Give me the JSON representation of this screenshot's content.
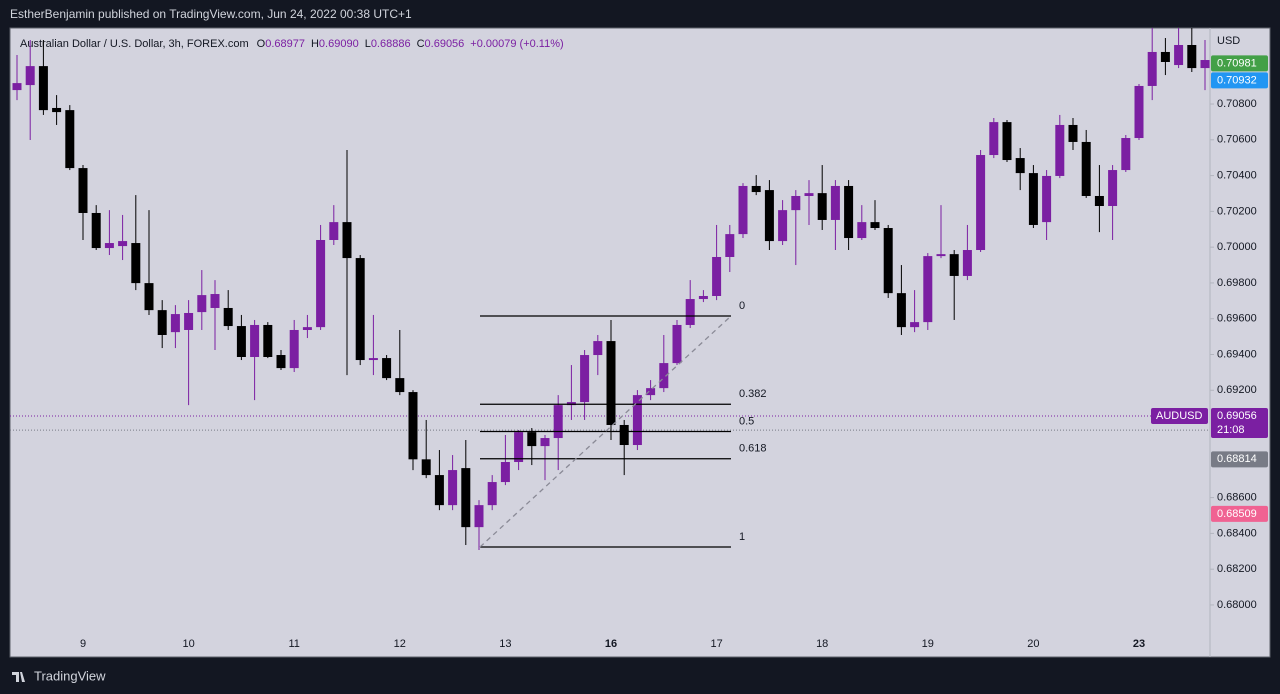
{
  "header": {
    "publisher": "EstherBenjamin published on TradingView.com, Jun 24, 2022 00:38 UTC+1",
    "brand": "TradingView"
  },
  "chart_data": {
    "type": "candlestick",
    "symbol": "Australian Dollar / U.S. Dollar, 3h, FOREX.com",
    "ohlc": [
      {
        "name": "O",
        "value": 0.68977,
        "label": "0.68977"
      },
      {
        "name": "H",
        "value": 0.6909,
        "label": "0.69090"
      },
      {
        "name": "L",
        "value": 0.68886,
        "label": "0.68886"
      },
      {
        "name": "C",
        "value": 0.69056,
        "label": "0.69056"
      }
    ],
    "change": "+0.00079 (+0.11%)",
    "currency": "USD",
    "categories": [
      null,
      null,
      null,
      null,
      null,
      "9",
      null,
      null,
      null,
      null,
      null,
      null,
      null,
      "10",
      null,
      null,
      null,
      null,
      null,
      null,
      null,
      "11",
      null,
      null,
      null,
      null,
      null,
      null,
      null,
      "12",
      null,
      null,
      null,
      null,
      null,
      null,
      null,
      "13",
      null,
      null,
      null,
      null,
      null,
      null,
      null,
      "16",
      null,
      null,
      null,
      null,
      null,
      null,
      null,
      "17",
      null,
      null,
      null,
      null,
      null,
      null,
      null,
      "18",
      null,
      null,
      null,
      null,
      null,
      null,
      null,
      "19",
      null,
      null,
      null,
      null,
      null,
      null,
      null,
      "20",
      null,
      null,
      null,
      null,
      null,
      null,
      null,
      "23",
      null,
      null,
      null,
      null,
      null
    ],
    "open": [
      0.70878,
      0.70906,
      0.71012,
      0.70778,
      0.70766,
      0.70442,
      0.70191,
      0.69995,
      0.70006,
      0.70023,
      0.69799,
      0.69648,
      0.69525,
      0.69537,
      0.69637,
      0.6966,
      0.6966,
      0.69559,
      0.69386,
      0.69565,
      0.69397,
      0.69324,
      0.69537,
      0.69553,
      0.7004,
      0.7014,
      0.69939,
      0.69369,
      0.6938,
      0.69268,
      0.6919,
      0.68814,
      0.68726,
      0.68558,
      0.68765,
      0.68435,
      0.68558,
      0.68687,
      0.68799,
      0.68966,
      0.68888,
      0.68933,
      0.69117,
      0.69134,
      0.69397,
      0.69475,
      0.69006,
      0.68894,
      0.69173,
      0.69212,
      0.69352,
      0.69565,
      0.6971,
      0.69727,
      0.69945,
      0.70073,
      0.70342,
      0.70319,
      0.70034,
      0.70207,
      0.70286,
      0.70302,
      0.70152,
      0.70342,
      0.70051,
      0.7014,
      0.70107,
      0.69743,
      0.69553,
      0.69581,
      0.6995,
      0.69961,
      0.69839,
      0.69984,
      0.70515,
      0.70699,
      0.70498,
      0.70414,
      0.7014,
      0.70398,
      0.70683,
      0.70588,
      0.70286,
      0.7023,
      0.70431,
      0.7061,
      0.70901,
      0.71091,
      0.71018,
      0.7113,
      0.71001
    ],
    "high": [
      0.71074,
      0.71158,
      0.71158,
      0.7085,
      0.70794,
      0.70459,
      0.70235,
      0.70207,
      0.7018,
      0.70291,
      0.70207,
      0.69704,
      0.69676,
      0.69704,
      0.69872,
      0.69816,
      0.6976,
      0.69621,
      0.69593,
      0.69581,
      0.69425,
      0.69593,
      0.69621,
      0.70124,
      0.70235,
      0.70543,
      0.69956,
      0.69621,
      0.69397,
      0.69537,
      0.69201,
      0.69034,
      0.68866,
      0.68838,
      0.68922,
      0.68586,
      0.68726,
      0.6895,
      0.68978,
      0.68989,
      0.6895,
      0.69173,
      0.69341,
      0.69425,
      0.69509,
      0.69593,
      0.69034,
      0.69201,
      0.69257,
      0.69509,
      0.69593,
      0.69816,
      0.6976,
      0.70124,
      0.70124,
      0.70358,
      0.70403,
      0.70375,
      0.70263,
      0.70319,
      0.70375,
      0.70459,
      0.70375,
      0.70375,
      0.70235,
      0.70263,
      0.70124,
      0.699,
      0.6976,
      0.69967,
      0.70235,
      0.69984,
      0.70124,
      0.70543,
      0.70722,
      0.70711,
      0.70554,
      0.70459,
      0.70431,
      0.70739,
      0.70722,
      0.70655,
      0.70459,
      0.70459,
      0.70627,
      0.70912,
      0.71225,
      0.71169,
      0.71225,
      0.71225,
      0.71158
    ],
    "low": [
      0.70822,
      0.70599,
      0.70739,
      0.70683,
      0.70431,
      0.7004,
      0.69984,
      0.69956,
      0.69928,
      0.6976,
      0.69621,
      0.69436,
      0.69436,
      0.69117,
      0.69537,
      0.69425,
      0.69537,
      0.69369,
      0.69145,
      0.6938,
      0.69313,
      0.69302,
      0.69492,
      0.69537,
      0.70012,
      0.69285,
      0.69341,
      0.69285,
      0.69257,
      0.69173,
      0.68754,
      0.68709,
      0.6853,
      0.6853,
      0.68335,
      0.68307,
      0.6853,
      0.6867,
      0.68754,
      0.68782,
      0.68698,
      0.68754,
      0.69034,
      0.69034,
      0.69285,
      0.68922,
      0.68726,
      0.68866,
      0.69145,
      0.6919,
      0.69341,
      0.69548,
      0.69693,
      0.69704,
      0.69861,
      0.70051,
      0.70291,
      0.69984,
      0.70012,
      0.699,
      0.70124,
      0.70096,
      0.69984,
      0.69984,
      0.7004,
      0.70096,
      0.69716,
      0.69509,
      0.69525,
      0.69537,
      0.69939,
      0.69593,
      0.69816,
      0.69973,
      0.70498,
      0.70476,
      0.70319,
      0.70107,
      0.7004,
      0.70386,
      0.70543,
      0.70275,
      0.70084,
      0.7004,
      0.7042,
      0.70599,
      0.70822,
      0.70962,
      0.71001,
      0.70979,
      0.70878
    ],
    "close": [
      0.70917,
      0.71012,
      0.70766,
      0.70755,
      0.70442,
      0.70191,
      0.69995,
      0.70023,
      0.70034,
      0.69799,
      0.69648,
      0.69509,
      0.69626,
      0.69632,
      0.69732,
      0.69738,
      0.69559,
      0.69386,
      0.69565,
      0.69386,
      0.69324,
      0.69537,
      0.69553,
      0.7004,
      0.7014,
      0.69939,
      0.69369,
      0.6938,
      0.69268,
      0.6919,
      0.68814,
      0.68726,
      0.68558,
      0.68754,
      0.68435,
      0.68558,
      0.68687,
      0.68799,
      0.68966,
      0.68888,
      0.68933,
      0.69117,
      0.69134,
      0.69397,
      0.69475,
      0.69006,
      0.68894,
      0.69173,
      0.69212,
      0.69352,
      0.69565,
      0.6971,
      0.69727,
      0.69945,
      0.70073,
      0.70342,
      0.70308,
      0.70034,
      0.70207,
      0.70286,
      0.70302,
      0.70152,
      0.70342,
      0.70051,
      0.7014,
      0.70107,
      0.69743,
      0.69553,
      0.69581,
      0.6995,
      0.69961,
      0.69839,
      0.69984,
      0.70515,
      0.70699,
      0.70487,
      0.70414,
      0.70124,
      0.70398,
      0.70683,
      0.70588,
      0.70286,
      0.7023,
      0.70431,
      0.7061,
      0.70901,
      0.71091,
      0.71035,
      0.7113,
      0.71001,
      0.71046
    ],
    "up_color": "#7b1fa2",
    "down_color": "#000000",
    "ylim": [
      0.6786,
      0.71225
    ],
    "yticks": [
      {
        "value": 0.68,
        "label": "0.68000"
      },
      {
        "value": 0.682,
        "label": "0.68200"
      },
      {
        "value": 0.684,
        "label": "0.68400"
      },
      {
        "value": 0.686,
        "label": "0.68600"
      },
      {
        "value": 0.692,
        "label": "0.69200"
      },
      {
        "value": 0.694,
        "label": "0.69400"
      },
      {
        "value": 0.696,
        "label": "0.69600"
      },
      {
        "value": 0.698,
        "label": "0.69800"
      },
      {
        "value": 0.7,
        "label": "0.70000"
      },
      {
        "value": 0.702,
        "label": "0.70200"
      },
      {
        "value": 0.704,
        "label": "0.70400"
      },
      {
        "value": 0.706,
        "label": "0.70600"
      },
      {
        "value": 0.708,
        "label": "0.70800"
      }
    ],
    "grid": false,
    "badges": [
      {
        "value": 0.70981,
        "color": "#43a047"
      },
      {
        "value": 0.70932,
        "color": "#2196f3"
      },
      {
        "value": 0.68814,
        "color": "#787b86"
      },
      {
        "value": 0.68509,
        "color": "#f06292"
      }
    ],
    "last_price": {
      "symbol": "AUDUSD",
      "value": 0.69056,
      "countdown": "21:08",
      "color": "#7b1fa2"
    },
    "fibonacci": {
      "levels": [
        0,
        0.382,
        0.5,
        0.618,
        1
      ],
      "high": 0.69615,
      "low": 0.68324
    }
  }
}
